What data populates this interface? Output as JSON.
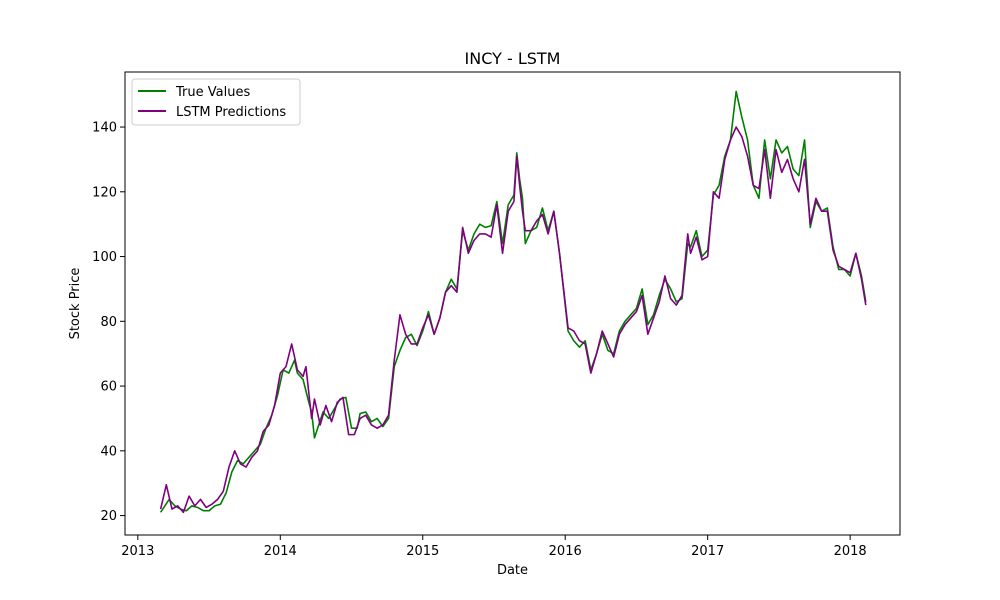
{
  "chart_data": {
    "type": "line",
    "title": "INCY - LSTM",
    "xlabel": "Date",
    "ylabel": "Stock Price",
    "x_tick_labels": [
      "2013",
      "2014",
      "2015",
      "2016",
      "2017",
      "2018"
    ],
    "y_tick_labels": [
      "20",
      "40",
      "60",
      "80",
      "100",
      "120",
      "140"
    ],
    "xlim": [
      2012.91,
      2018.35
    ],
    "ylim": [
      14,
      157
    ],
    "grid": false,
    "legend_position": "top-left",
    "colors": {
      "true_values": "#008000",
      "lstm_predictions": "#800080"
    },
    "series": [
      {
        "name": "True Values",
        "color": "#008000",
        "x": [
          2013.16,
          2013.22,
          2013.26,
          2013.3,
          2013.34,
          2013.38,
          2013.42,
          2013.46,
          2013.5,
          2013.54,
          2013.58,
          2013.62,
          2013.66,
          2013.7,
          2013.74,
          2013.78,
          2013.82,
          2013.86,
          2013.9,
          2013.94,
          2013.98,
          2014.02,
          2014.06,
          2014.1,
          2014.12,
          2014.16,
          2014.2,
          2014.22,
          2014.24,
          2014.27,
          2014.3,
          2014.34,
          2014.38,
          2014.42,
          2014.46,
          2014.5,
          2014.54,
          2014.56,
          2014.6,
          2014.64,
          2014.68,
          2014.72,
          2014.76,
          2014.8,
          2014.84,
          2014.88,
          2014.92,
          2014.96,
          2015.0,
          2015.04,
          2015.08,
          2015.12,
          2015.16,
          2015.2,
          2015.24,
          2015.28,
          2015.32,
          2015.36,
          2015.4,
          2015.44,
          2015.48,
          2015.52,
          2015.56,
          2015.6,
          2015.64,
          2015.66,
          2015.68,
          2015.7,
          2015.72,
          2015.76,
          2015.8,
          2015.84,
          2015.88,
          2015.92,
          2015.96,
          2016.02,
          2016.06,
          2016.1,
          2016.14,
          2016.18,
          2016.22,
          2016.26,
          2016.3,
          2016.34,
          2016.38,
          2016.42,
          2016.46,
          2016.5,
          2016.54,
          2016.58,
          2016.62,
          2016.66,
          2016.7,
          2016.74,
          2016.78,
          2016.82,
          2016.86,
          2016.88,
          2016.92,
          2016.96,
          2017.0,
          2017.04,
          2017.08,
          2017.12,
          2017.16,
          2017.2,
          2017.24,
          2017.28,
          2017.32,
          2017.36,
          2017.4,
          2017.44,
          2017.48,
          2017.52,
          2017.56,
          2017.6,
          2017.64,
          2017.68,
          2017.72,
          2017.76,
          2017.8,
          2017.84,
          2017.88,
          2017.92,
          2017.96,
          2018.0,
          2018.04,
          2018.08,
          2018.11
        ],
        "values": [
          21,
          25,
          23,
          22,
          21.5,
          23,
          22.5,
          21.5,
          21.5,
          23,
          23.5,
          27,
          33.5,
          37,
          36,
          38,
          40,
          42,
          47,
          51,
          57,
          65,
          64,
          68,
          64,
          62,
          55,
          52,
          44,
          48,
          52,
          50,
          53,
          56,
          56.5,
          47,
          47,
          51.5,
          52,
          49,
          50,
          47.5,
          50,
          66,
          71,
          75,
          76,
          72.5,
          77,
          83,
          76,
          81,
          89,
          93,
          90,
          108,
          102,
          107,
          110,
          109,
          109.5,
          117,
          104,
          116,
          119,
          132,
          124,
          118,
          104,
          108,
          109,
          115,
          108,
          114,
          101,
          77,
          74,
          72,
          74,
          65,
          70,
          76,
          71,
          70,
          77,
          80,
          82,
          84,
          90,
          79,
          82,
          88,
          93,
          90,
          86,
          87,
          104,
          103,
          108,
          100,
          102,
          119,
          122,
          131,
          136,
          151,
          143,
          136,
          122,
          118,
          136,
          124,
          136,
          132,
          134,
          127,
          125,
          136,
          109,
          117,
          114,
          115,
          103,
          96,
          96,
          94,
          101,
          94,
          86
        ],
        "line_width": 1.6
      },
      {
        "name": "LSTM Predictions",
        "color": "#800080",
        "x": [
          2013.16,
          2013.2,
          2013.24,
          2013.28,
          2013.32,
          2013.36,
          2013.4,
          2013.44,
          2013.48,
          2013.52,
          2013.56,
          2013.6,
          2013.64,
          2013.68,
          2013.72,
          2013.76,
          2013.8,
          2013.84,
          2013.88,
          2013.92,
          2013.96,
          2014.0,
          2014.04,
          2014.08,
          2014.12,
          2014.16,
          2014.18,
          2014.22,
          2014.24,
          2014.28,
          2014.32,
          2014.36,
          2014.4,
          2014.44,
          2014.48,
          2014.52,
          2014.56,
          2014.6,
          2014.64,
          2014.68,
          2014.72,
          2014.76,
          2014.8,
          2014.84,
          2014.88,
          2014.92,
          2014.96,
          2015.0,
          2015.04,
          2015.08,
          2015.12,
          2015.16,
          2015.2,
          2015.24,
          2015.28,
          2015.32,
          2015.36,
          2015.4,
          2015.44,
          2015.48,
          2015.52,
          2015.56,
          2015.6,
          2015.64,
          2015.66,
          2015.68,
          2015.7,
          2015.72,
          2015.76,
          2015.8,
          2015.84,
          2015.88,
          2015.92,
          2015.96,
          2016.02,
          2016.06,
          2016.1,
          2016.14,
          2016.18,
          2016.22,
          2016.26,
          2016.3,
          2016.34,
          2016.38,
          2016.42,
          2016.46,
          2016.5,
          2016.54,
          2016.58,
          2016.62,
          2016.66,
          2016.7,
          2016.74,
          2016.78,
          2016.82,
          2016.86,
          2016.88,
          2016.92,
          2016.96,
          2017.0,
          2017.04,
          2017.08,
          2017.12,
          2017.16,
          2017.2,
          2017.24,
          2017.28,
          2017.32,
          2017.36,
          2017.4,
          2017.44,
          2017.48,
          2017.52,
          2017.56,
          2017.6,
          2017.64,
          2017.68,
          2017.72,
          2017.76,
          2017.8,
          2017.84,
          2017.88,
          2017.92,
          2017.96,
          2018.0,
          2018.04,
          2018.08,
          2018.11
        ],
        "values": [
          22,
          29.5,
          22,
          23,
          21,
          26,
          23,
          25,
          22.5,
          23.5,
          25,
          27.5,
          35,
          40,
          36,
          35,
          38,
          40,
          46,
          48,
          54,
          64,
          66,
          73,
          65,
          63,
          66,
          50,
          56,
          48,
          54,
          49,
          55,
          56.5,
          45,
          45,
          50,
          51,
          48,
          47,
          48,
          51,
          68,
          82,
          76,
          73,
          73,
          78,
          82,
          76,
          81,
          89,
          91,
          89,
          109,
          101,
          105,
          107,
          107,
          106,
          116,
          101,
          114,
          117,
          131,
          122,
          114,
          108,
          108,
          111,
          113,
          107,
          114,
          101,
          78,
          77,
          74,
          73,
          64,
          70,
          77,
          73,
          69,
          76,
          79,
          81,
          83,
          88,
          76,
          81,
          86,
          94,
          87,
          85,
          88,
          107,
          101,
          106,
          99,
          100,
          120,
          118,
          130,
          136,
          140,
          137,
          131,
          122,
          121,
          133,
          118,
          133,
          126,
          130,
          124,
          120,
          130,
          110,
          118,
          114,
          114,
          102,
          97,
          96,
          95,
          101,
          93,
          85
        ],
        "line_width": 1.6
      }
    ]
  }
}
